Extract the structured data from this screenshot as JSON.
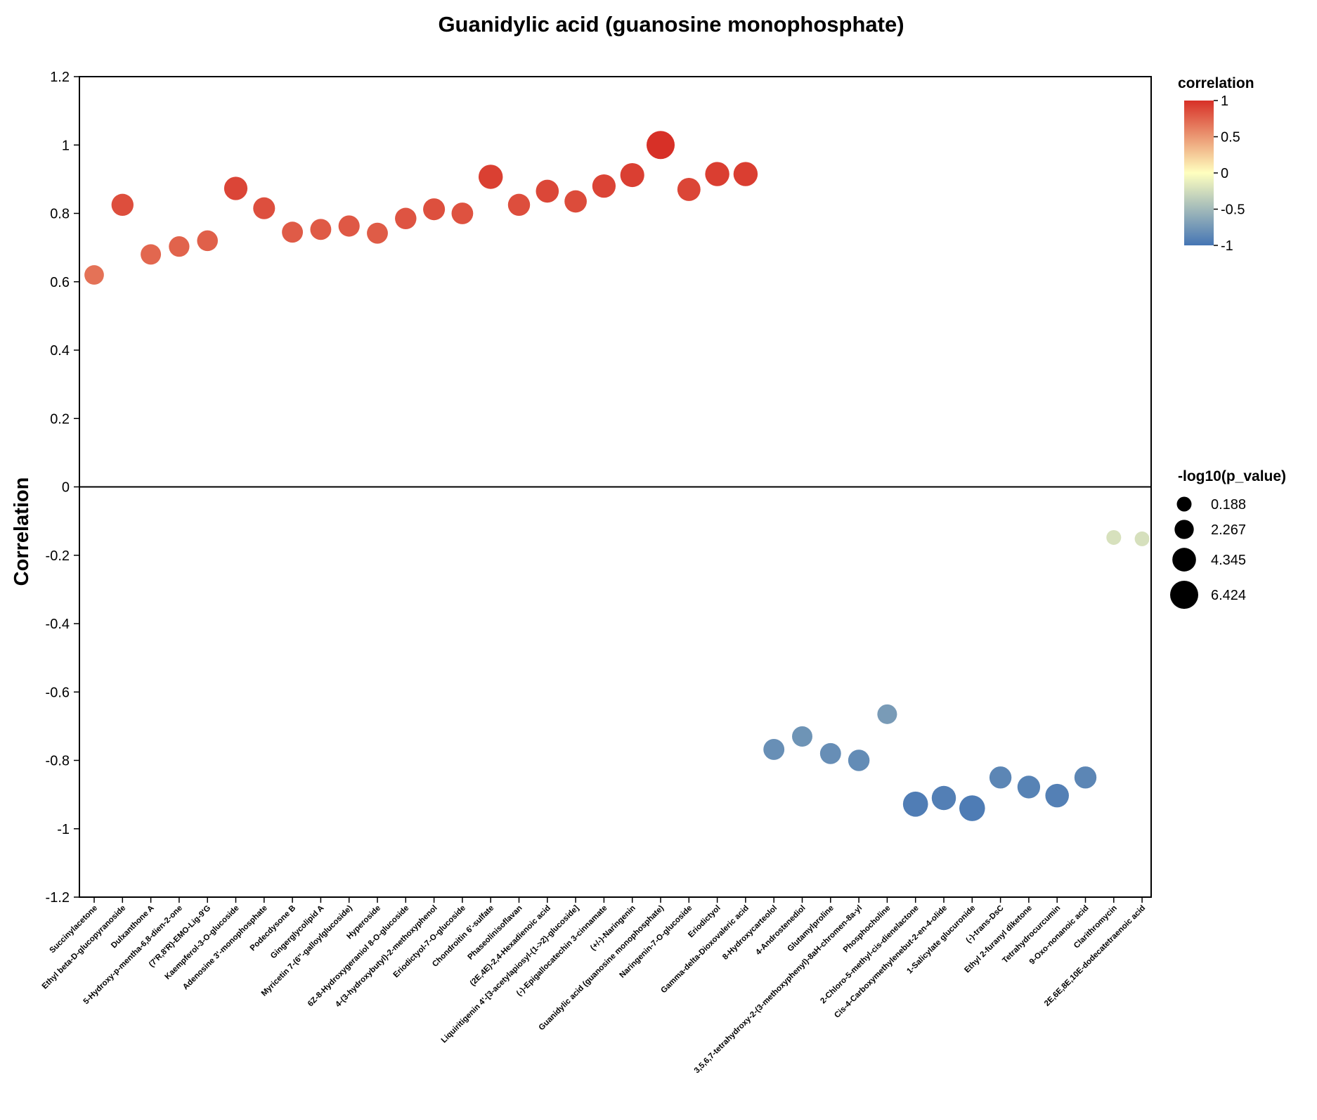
{
  "chart_data": {
    "type": "scatter",
    "title": "Guanidylic acid (guanosine monophosphate)",
    "xlabel": "",
    "ylabel": "Correlation",
    "ylim": [
      -1.2,
      1.2
    ],
    "yticks": [
      "1.2",
      "1",
      "0.8",
      "0.6",
      "0.4",
      "0.2",
      "0",
      "-0.2",
      "-0.4",
      "-0.6",
      "-0.8",
      "-1",
      "-1.2"
    ],
    "ytick_values": [
      1.2,
      1,
      0.8,
      0.6,
      0.4,
      0.2,
      0,
      -0.2,
      -0.4,
      -0.6,
      -0.8,
      -1,
      -1.2
    ],
    "reference_line_y": 0,
    "color_legend": {
      "title": "correlation",
      "ticks": [
        "1",
        "0.5",
        "0",
        "-0.5",
        "-1"
      ],
      "tick_values": [
        1,
        0.5,
        0,
        -0.5,
        -1
      ],
      "color_high": "#d73027",
      "color_mid": "#ffffbf",
      "color_low": "#4575b4"
    },
    "size_legend": {
      "title": "-log10(p_value)",
      "labels": [
        "0.188",
        "2.267",
        "4.345",
        "6.424"
      ],
      "values": [
        0.188,
        2.267,
        4.345,
        6.424
      ]
    },
    "categories": [
      "Succinylacetone",
      "Ethyl beta-D-glucopyranoside",
      "Dulxanthone A",
      "5-Hydroxy-p-mentha-6,8-dien-2-one",
      "(7'R,8'R)-EMO-Lig-9'G",
      "Kaempferol-3-O-glucoside",
      "Adenosine 3'-monophosphate",
      "Podecdysone B",
      "Gingerglycolipid A",
      "Myricetin 7-(6''-galloylglucoside)",
      "Hyperoside",
      "6Z-8-Hydroxygeraniol 8-O-glucoside",
      "4-(3-hydroxybutyl)-2-methoxyphenol",
      "Eriodictyol-7-O-glucoside",
      "Chondroitin 6'-sulfate",
      "Phaseolinisoflavan",
      "(2E,4E)-2,4-Hexadienoic acid",
      "Liquiritigenin 4'-[3-acetylapiosyl-(1->2)-glucoside]",
      "(-)-Epigallocatechin 3-cinnamate",
      "(+/-)-Naringenin",
      "Guanidylic acid (guanosine monophosphate)",
      "Naringenin-7-O-glucoside",
      "Eriodictyol",
      "Gamma-delta-Dioxovaleric acid",
      "8-Hydroxycarteolol",
      "4-Androstenediol",
      "Glutamylproline",
      "3,5,6,7-tetrahydroxy-2-(3-methoxyphenyl)-8aH-chromen-8a-yl",
      "Phosphocholine",
      "2-Chloro-5-methyl-cis-dienelactone",
      "Cis-4-Carboxymethylenebut-2-en-4-olide",
      "1-Salicylate glucuronide",
      "(-)-trans-DsC",
      "Ethyl 2-furanyl diketone",
      "Tetrahydrocurcumin",
      "9-Oxo-nonanoic acid",
      "Clarithromycin",
      "2E,6E,8E,10E-dodecatetraenoic acid"
    ],
    "correlation": [
      0.62,
      0.825,
      0.68,
      0.703,
      0.72,
      0.873,
      0.815,
      0.745,
      0.753,
      0.763,
      0.742,
      0.785,
      0.812,
      0.8,
      0.907,
      0.825,
      0.865,
      0.835,
      0.88,
      0.912,
      1.0,
      0.87,
      0.915,
      0.915,
      -0.768,
      -0.73,
      -0.78,
      -0.8,
      -0.665,
      -0.928,
      -0.91,
      -0.94,
      -0.85,
      -0.878,
      -0.903,
      -0.85,
      -0.148,
      -0.152
    ],
    "neg_log10_p": [
      2.4,
      3.6,
      2.8,
      2.9,
      3.0,
      4.2,
      3.5,
      3.1,
      3.1,
      3.2,
      3.1,
      3.3,
      3.5,
      3.4,
      4.6,
      3.6,
      4.0,
      3.7,
      4.2,
      4.5,
      6.424,
      4.1,
      4.6,
      4.6,
      3.1,
      2.8,
      3.1,
      3.3,
      2.5,
      5.0,
      4.6,
      5.3,
      3.6,
      3.9,
      4.3,
      3.6,
      0.188,
      0.188
    ]
  }
}
